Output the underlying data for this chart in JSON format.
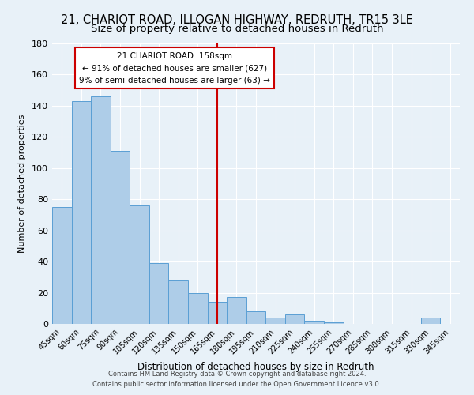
{
  "title": "21, CHARIOT ROAD, ILLOGAN HIGHWAY, REDRUTH, TR15 3LE",
  "subtitle": "Size of property relative to detached houses in Redruth",
  "xlabel": "Distribution of detached houses by size in Redruth",
  "ylabel": "Number of detached properties",
  "footer_line1": "Contains HM Land Registry data © Crown copyright and database right 2024.",
  "footer_line2": "Contains public sector information licensed under the Open Government Licence v3.0.",
  "bar_labels": [
    "45sqm",
    "60sqm",
    "75sqm",
    "90sqm",
    "105sqm",
    "120sqm",
    "135sqm",
    "150sqm",
    "165sqm",
    "180sqm",
    "195sqm",
    "210sqm",
    "225sqm",
    "240sqm",
    "255sqm",
    "270sqm",
    "285sqm",
    "300sqm",
    "315sqm",
    "330sqm",
    "345sqm"
  ],
  "bar_values": [
    75,
    143,
    146,
    111,
    76,
    39,
    28,
    20,
    14,
    17,
    8,
    4,
    6,
    2,
    1,
    0,
    0,
    0,
    0,
    4,
    0
  ],
  "bar_color": "#aecde8",
  "bar_edge_color": "#5a9fd4",
  "vline_x": 8,
  "vline_color": "#cc0000",
  "annotation_title": "21 CHARIOT ROAD: 158sqm",
  "annotation_line1": "← 91% of detached houses are smaller (627)",
  "annotation_line2": "9% of semi-detached houses are larger (63) →",
  "annotation_box_color": "#ffffff",
  "annotation_border_color": "#cc0000",
  "ylim": [
    0,
    180
  ],
  "yticks": [
    0,
    20,
    40,
    60,
    80,
    100,
    120,
    140,
    160,
    180
  ],
  "bg_color": "#e8f1f8",
  "plot_bg_color": "#e8f1f8",
  "grid_color": "#ffffff",
  "title_fontsize": 10.5,
  "subtitle_fontsize": 9.5
}
